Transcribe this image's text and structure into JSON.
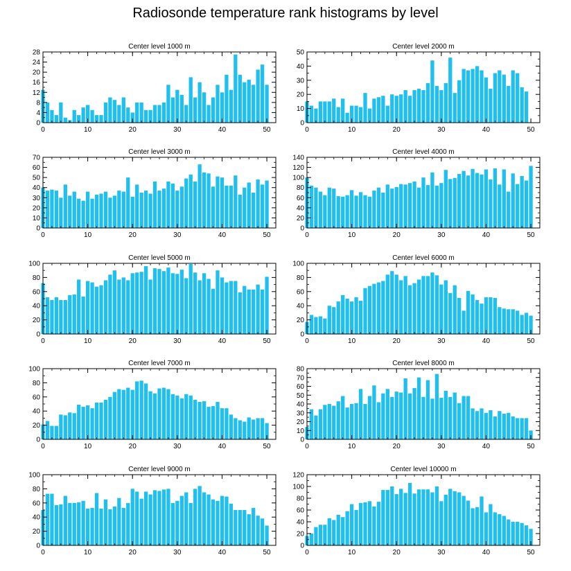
{
  "title": "Radiosonde temperature rank histograms by level",
  "colors": {
    "bar": "#1fbfef",
    "axis": "#000000",
    "background": "#ffffff"
  },
  "chart_data": [
    {
      "type": "bar",
      "title": "Center level 1000 m",
      "xlim": [
        0,
        52
      ],
      "ylim": [
        0,
        28
      ],
      "xticks": [
        0,
        10,
        20,
        30,
        40,
        50
      ],
      "yticks": [
        0,
        4,
        8,
        12,
        16,
        20,
        24,
        28
      ],
      "x": [
        0,
        1,
        2,
        3,
        4,
        5,
        6,
        7,
        8,
        9,
        10,
        11,
        12,
        13,
        14,
        15,
        16,
        17,
        18,
        19,
        20,
        21,
        22,
        23,
        24,
        25,
        26,
        27,
        28,
        29,
        30,
        31,
        32,
        33,
        34,
        35,
        36,
        37,
        38,
        39,
        40,
        41,
        42,
        43,
        44,
        45,
        46,
        47,
        48,
        49,
        50,
        51
      ],
      "values": [
        13,
        8,
        5,
        3,
        8,
        2,
        1,
        5,
        3,
        6,
        7,
        5,
        3,
        3,
        8,
        10,
        9,
        7,
        10,
        6,
        4,
        8,
        8,
        5,
        5,
        7,
        7,
        8,
        15,
        10,
        13,
        11,
        7,
        18,
        10,
        16,
        12,
        7,
        10,
        15,
        12,
        19,
        13,
        27,
        19,
        16,
        17,
        15,
        21,
        23,
        15,
        0
      ]
    },
    {
      "type": "bar",
      "title": "Center level 2000 m",
      "xlim": [
        0,
        52
      ],
      "ylim": [
        0,
        50
      ],
      "xticks": [
        0,
        10,
        20,
        30,
        40,
        50
      ],
      "yticks": [
        0,
        10,
        20,
        30,
        40,
        50
      ],
      "x": [
        0,
        1,
        2,
        3,
        4,
        5,
        6,
        7,
        8,
        9,
        10,
        11,
        12,
        13,
        14,
        15,
        16,
        17,
        18,
        19,
        20,
        21,
        22,
        23,
        24,
        25,
        26,
        27,
        28,
        29,
        30,
        31,
        32,
        33,
        34,
        35,
        36,
        37,
        38,
        39,
        40,
        41,
        42,
        43,
        44,
        45,
        46,
        47,
        48,
        49,
        50,
        51
      ],
      "values": [
        15,
        12,
        10,
        15,
        15,
        15,
        17,
        11,
        17,
        7,
        12,
        12,
        11,
        21,
        10,
        17,
        18,
        19,
        12,
        20,
        19,
        20,
        23,
        19,
        23,
        24,
        23,
        28,
        44,
        26,
        23,
        28,
        46,
        21,
        30,
        38,
        37,
        38,
        40,
        37,
        32,
        24,
        35,
        37,
        34,
        26,
        37,
        35,
        25,
        22,
        0,
        0
      ]
    },
    {
      "type": "bar",
      "title": "Center level 3000 m",
      "xlim": [
        0,
        52
      ],
      "ylim": [
        0,
        70
      ],
      "xticks": [
        0,
        10,
        20,
        30,
        40,
        50
      ],
      "yticks": [
        0,
        10,
        20,
        30,
        40,
        50,
        60,
        70
      ],
      "x": [
        0,
        1,
        2,
        3,
        4,
        5,
        6,
        7,
        8,
        9,
        10,
        11,
        12,
        13,
        14,
        15,
        16,
        17,
        18,
        19,
        20,
        21,
        22,
        23,
        24,
        25,
        26,
        27,
        28,
        29,
        30,
        31,
        32,
        33,
        34,
        35,
        36,
        37,
        38,
        39,
        40,
        41,
        42,
        43,
        44,
        45,
        46,
        47,
        48,
        49,
        50,
        51
      ],
      "values": [
        40,
        37,
        38,
        37,
        30,
        43,
        32,
        36,
        29,
        27,
        36,
        29,
        33,
        34,
        36,
        30,
        32,
        37,
        36,
        50,
        31,
        43,
        35,
        37,
        34,
        46,
        37,
        39,
        46,
        44,
        37,
        41,
        49,
        53,
        46,
        63,
        55,
        54,
        41,
        51,
        50,
        42,
        42,
        52,
        33,
        40,
        45,
        35,
        48,
        43,
        47,
        0
      ]
    },
    {
      "type": "bar",
      "title": "Center level 4000 m",
      "xlim": [
        0,
        52
      ],
      "ylim": [
        0,
        140
      ],
      "xticks": [
        0,
        10,
        20,
        30,
        40,
        50
      ],
      "yticks": [
        0,
        20,
        40,
        60,
        80,
        100,
        120,
        140
      ],
      "x": [
        0,
        1,
        2,
        3,
        4,
        5,
        6,
        7,
        8,
        9,
        10,
        11,
        12,
        13,
        14,
        15,
        16,
        17,
        18,
        19,
        20,
        21,
        22,
        23,
        24,
        25,
        26,
        27,
        28,
        29,
        30,
        31,
        32,
        33,
        34,
        35,
        36,
        37,
        38,
        39,
        40,
        41,
        42,
        43,
        44,
        45,
        46,
        47,
        48,
        49,
        50,
        51
      ],
      "values": [
        100,
        84,
        80,
        72,
        65,
        80,
        78,
        63,
        62,
        65,
        75,
        64,
        71,
        65,
        62,
        74,
        80,
        70,
        86,
        78,
        81,
        87,
        86,
        89,
        92,
        80,
        100,
        85,
        110,
        84,
        89,
        115,
        97,
        99,
        107,
        113,
        104,
        117,
        109,
        106,
        116,
        96,
        118,
        86,
        116,
        72,
        108,
        87,
        103,
        94,
        123,
        0
      ]
    },
    {
      "type": "bar",
      "title": "Center level 5000 m",
      "xlim": [
        0,
        52
      ],
      "ylim": [
        0,
        100
      ],
      "xticks": [
        0,
        10,
        20,
        30,
        40,
        50
      ],
      "yticks": [
        0,
        20,
        40,
        60,
        80,
        100
      ],
      "x": [
        0,
        1,
        2,
        3,
        4,
        5,
        6,
        7,
        8,
        9,
        10,
        11,
        12,
        13,
        14,
        15,
        16,
        17,
        18,
        19,
        20,
        21,
        22,
        23,
        24,
        25,
        26,
        27,
        28,
        29,
        30,
        31,
        32,
        33,
        34,
        35,
        36,
        37,
        38,
        39,
        40,
        41,
        42,
        43,
        44,
        45,
        46,
        47,
        48,
        49,
        50,
        51
      ],
      "values": [
        72,
        52,
        48,
        52,
        48,
        48,
        55,
        56,
        77,
        53,
        75,
        73,
        67,
        69,
        76,
        84,
        90,
        77,
        80,
        76,
        86,
        87,
        88,
        96,
        77,
        93,
        92,
        89,
        94,
        86,
        85,
        91,
        79,
        99,
        87,
        76,
        86,
        78,
        64,
        90,
        80,
        73,
        75,
        75,
        59,
        68,
        63,
        63,
        70,
        63,
        81,
        0
      ]
    },
    {
      "type": "bar",
      "title": "Center level 6000 m",
      "xlim": [
        0,
        52
      ],
      "ylim": [
        0,
        100
      ],
      "xticks": [
        0,
        10,
        20,
        30,
        40,
        50
      ],
      "yticks": [
        0,
        20,
        40,
        60,
        80,
        100
      ],
      "x": [
        0,
        1,
        2,
        3,
        4,
        5,
        6,
        7,
        8,
        9,
        10,
        11,
        12,
        13,
        14,
        15,
        16,
        17,
        18,
        19,
        20,
        21,
        22,
        23,
        24,
        25,
        26,
        27,
        28,
        29,
        30,
        31,
        32,
        33,
        34,
        35,
        36,
        37,
        38,
        39,
        40,
        41,
        42,
        43,
        44,
        45,
        46,
        47,
        48,
        49,
        50,
        51
      ],
      "values": [
        17,
        27,
        24,
        25,
        22,
        40,
        38,
        46,
        55,
        50,
        46,
        52,
        47,
        65,
        68,
        71,
        73,
        75,
        84,
        89,
        84,
        76,
        82,
        69,
        72,
        77,
        82,
        82,
        87,
        83,
        70,
        76,
        58,
        69,
        51,
        33,
        61,
        56,
        48,
        43,
        52,
        52,
        51,
        38,
        36,
        35,
        35,
        33,
        27,
        30,
        26,
        0
      ]
    },
    {
      "type": "bar",
      "title": "Center level 7000 m",
      "xlim": [
        0,
        52
      ],
      "ylim": [
        0,
        100
      ],
      "xticks": [
        0,
        10,
        20,
        30,
        40,
        50
      ],
      "yticks": [
        0,
        20,
        40,
        60,
        80,
        100
      ],
      "x": [
        0,
        1,
        2,
        3,
        4,
        5,
        6,
        7,
        8,
        9,
        10,
        11,
        12,
        13,
        14,
        15,
        16,
        17,
        18,
        19,
        20,
        21,
        22,
        23,
        24,
        25,
        26,
        27,
        28,
        29,
        30,
        31,
        32,
        33,
        34,
        35,
        36,
        37,
        38,
        39,
        40,
        41,
        42,
        43,
        44,
        45,
        46,
        47,
        48,
        49,
        50,
        51
      ],
      "values": [
        21,
        26,
        19,
        19,
        35,
        34,
        38,
        37,
        49,
        46,
        48,
        44,
        52,
        52,
        56,
        60,
        67,
        71,
        70,
        73,
        70,
        82,
        83,
        79,
        68,
        65,
        72,
        73,
        71,
        64,
        62,
        58,
        64,
        62,
        56,
        53,
        54,
        46,
        47,
        53,
        44,
        44,
        35,
        30,
        27,
        25,
        31,
        28,
        30,
        30,
        23,
        0
      ]
    },
    {
      "type": "bar",
      "title": "Center level 8000 m",
      "xlim": [
        0,
        52
      ],
      "ylim": [
        0,
        80
      ],
      "xticks": [
        0,
        10,
        20,
        30,
        40,
        50
      ],
      "yticks": [
        0,
        10,
        20,
        30,
        40,
        50,
        60,
        70,
        80
      ],
      "x": [
        0,
        1,
        2,
        3,
        4,
        5,
        6,
        7,
        8,
        9,
        10,
        11,
        12,
        13,
        14,
        15,
        16,
        17,
        18,
        19,
        20,
        21,
        22,
        23,
        24,
        25,
        26,
        27,
        28,
        29,
        30,
        31,
        32,
        33,
        34,
        35,
        36,
        37,
        38,
        39,
        40,
        41,
        42,
        43,
        44,
        45,
        46,
        47,
        48,
        49,
        50,
        51
      ],
      "values": [
        14,
        34,
        27,
        34,
        39,
        40,
        38,
        43,
        49,
        36,
        40,
        41,
        57,
        40,
        49,
        61,
        42,
        52,
        57,
        48,
        54,
        53,
        69,
        52,
        58,
        70,
        48,
        67,
        46,
        74,
        47,
        55,
        48,
        53,
        41,
        49,
        49,
        35,
        32,
        35,
        30,
        33,
        26,
        32,
        29,
        30,
        26,
        24,
        24,
        24,
        10,
        0
      ]
    },
    {
      "type": "bar",
      "title": "Center level 9000 m",
      "xlim": [
        0,
        52
      ],
      "ylim": [
        0,
        100
      ],
      "xticks": [
        0,
        10,
        20,
        30,
        40,
        50
      ],
      "yticks": [
        0,
        20,
        40,
        60,
        80,
        100
      ],
      "x": [
        0,
        1,
        2,
        3,
        4,
        5,
        6,
        7,
        8,
        9,
        10,
        11,
        12,
        13,
        14,
        15,
        16,
        17,
        18,
        19,
        20,
        21,
        22,
        23,
        24,
        25,
        26,
        27,
        28,
        29,
        30,
        31,
        32,
        33,
        34,
        35,
        36,
        37,
        38,
        39,
        40,
        41,
        42,
        43,
        44,
        45,
        46,
        47,
        48,
        49,
        50,
        51
      ],
      "values": [
        50,
        73,
        73,
        57,
        58,
        70,
        60,
        60,
        61,
        63,
        52,
        53,
        74,
        52,
        65,
        51,
        55,
        67,
        53,
        60,
        80,
        76,
        66,
        76,
        72,
        78,
        77,
        79,
        80,
        60,
        63,
        70,
        75,
        60,
        80,
        84,
        75,
        72,
        65,
        63,
        70,
        69,
        59,
        50,
        50,
        50,
        44,
        53,
        42,
        38,
        28,
        0
      ]
    },
    {
      "type": "bar",
      "title": "Center level 10000 m",
      "xlim": [
        0,
        52
      ],
      "ylim": [
        0,
        120
      ],
      "xticks": [
        0,
        10,
        20,
        30,
        40,
        50
      ],
      "yticks": [
        0,
        20,
        40,
        60,
        80,
        100,
        120
      ],
      "x": [
        0,
        1,
        2,
        3,
        4,
        5,
        6,
        7,
        8,
        9,
        10,
        11,
        12,
        13,
        14,
        15,
        16,
        17,
        18,
        19,
        20,
        21,
        22,
        23,
        24,
        25,
        26,
        27,
        28,
        29,
        30,
        31,
        32,
        33,
        34,
        35,
        36,
        37,
        38,
        39,
        40,
        41,
        42,
        43,
        44,
        45,
        46,
        47,
        48,
        49,
        50,
        51
      ],
      "values": [
        16,
        20,
        31,
        35,
        35,
        46,
        43,
        52,
        48,
        58,
        70,
        60,
        72,
        73,
        75,
        66,
        74,
        94,
        94,
        100,
        87,
        96,
        89,
        106,
        88,
        95,
        95,
        95,
        90,
        100,
        75,
        86,
        96,
        92,
        90,
        84,
        76,
        63,
        65,
        83,
        56,
        70,
        56,
        53,
        50,
        44,
        40,
        40,
        38,
        34,
        28,
        0
      ]
    }
  ]
}
